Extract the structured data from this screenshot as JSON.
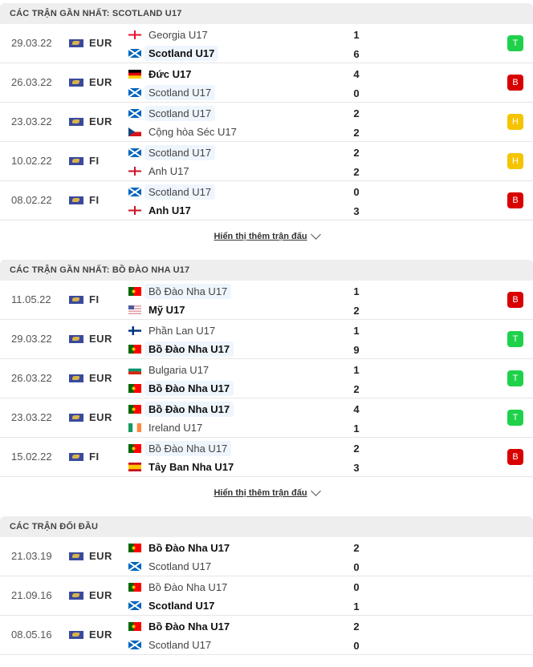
{
  "colors": {
    "win": "#1fd14a",
    "loss": "#d90000",
    "draw": "#f5c400",
    "focus_bg": "#eef5fd"
  },
  "show_more_label": "Hiển thị thêm trận đấu",
  "sections": [
    {
      "title": "CÁC TRẬN GẦN NHẤT: SCOTLAND U17",
      "show_more": true,
      "matches": [
        {
          "date": "29.03.22",
          "league": "EUR",
          "home": {
            "name": "Georgia U17",
            "flag": "georgia",
            "score": "1"
          },
          "away": {
            "name": "Scotland U17",
            "flag": "scotland",
            "score": "6",
            "focus": true,
            "bold": true
          },
          "result": "T"
        },
        {
          "date": "26.03.22",
          "league": "EUR",
          "home": {
            "name": "Đức U17",
            "flag": "germany",
            "score": "4",
            "bold": true
          },
          "away": {
            "name": "Scotland U17",
            "flag": "scotland",
            "score": "0",
            "focus": true
          },
          "result": "B"
        },
        {
          "date": "23.03.22",
          "league": "EUR",
          "home": {
            "name": "Scotland U17",
            "flag": "scotland",
            "score": "2",
            "focus": true
          },
          "away": {
            "name": "Cộng hòa Séc U17",
            "flag": "czech",
            "score": "2"
          },
          "result": "H"
        },
        {
          "date": "10.02.22",
          "league": "FI",
          "home": {
            "name": "Scotland U17",
            "flag": "scotland",
            "score": "2",
            "focus": true
          },
          "away": {
            "name": "Anh U17",
            "flag": "england",
            "score": "2"
          },
          "result": "H"
        },
        {
          "date": "08.02.22",
          "league": "FI",
          "home": {
            "name": "Scotland U17",
            "flag": "scotland",
            "score": "0",
            "focus": true
          },
          "away": {
            "name": "Anh U17",
            "flag": "england",
            "score": "3",
            "bold": true
          },
          "result": "B"
        }
      ]
    },
    {
      "title": "CÁC TRẬN GẦN NHẤT: BỒ ĐÀO NHA U17",
      "show_more": true,
      "matches": [
        {
          "date": "11.05.22",
          "league": "FI",
          "home": {
            "name": "Bồ Đào Nha U17",
            "flag": "portugal",
            "score": "1",
            "focus": true
          },
          "away": {
            "name": "Mỹ U17",
            "flag": "usa",
            "score": "2",
            "bold": true
          },
          "result": "B"
        },
        {
          "date": "29.03.22",
          "league": "EUR",
          "home": {
            "name": "Phần Lan U17",
            "flag": "finland",
            "score": "1"
          },
          "away": {
            "name": "Bồ Đào Nha U17",
            "flag": "portugal",
            "score": "9",
            "focus": true,
            "bold": true
          },
          "result": "T"
        },
        {
          "date": "26.03.22",
          "league": "EUR",
          "home": {
            "name": "Bulgaria U17",
            "flag": "bulgaria",
            "score": "1"
          },
          "away": {
            "name": "Bồ Đào Nha U17",
            "flag": "portugal",
            "score": "2",
            "focus": true,
            "bold": true
          },
          "result": "T"
        },
        {
          "date": "23.03.22",
          "league": "EUR",
          "home": {
            "name": "Bồ Đào Nha U17",
            "flag": "portugal",
            "score": "4",
            "focus": true,
            "bold": true
          },
          "away": {
            "name": "Ireland U17",
            "flag": "ireland",
            "score": "1"
          },
          "result": "T"
        },
        {
          "date": "15.02.22",
          "league": "FI",
          "home": {
            "name": "Bồ Đào Nha U17",
            "flag": "portugal",
            "score": "2",
            "focus": true
          },
          "away": {
            "name": "Tây Ban Nha U17",
            "flag": "spain",
            "score": "3",
            "bold": true
          },
          "result": "B"
        }
      ]
    },
    {
      "title": "CÁC TRẬN ĐỐI ĐẦU",
      "show_more": false,
      "matches": [
        {
          "date": "21.03.19",
          "league": "EUR",
          "home": {
            "name": "Bồ Đào Nha U17",
            "flag": "portugal",
            "score": "2",
            "bold": true
          },
          "away": {
            "name": "Scotland U17",
            "flag": "scotland",
            "score": "0"
          }
        },
        {
          "date": "21.09.16",
          "league": "EUR",
          "home": {
            "name": "Bồ Đào Nha U17",
            "flag": "portugal",
            "score": "0"
          },
          "away": {
            "name": "Scotland U17",
            "flag": "scotland",
            "score": "1",
            "bold": true
          }
        },
        {
          "date": "08.05.16",
          "league": "EUR",
          "home": {
            "name": "Bồ Đào Nha U17",
            "flag": "portugal",
            "score": "2",
            "bold": true
          },
          "away": {
            "name": "Scotland U17",
            "flag": "scotland",
            "score": "0"
          }
        }
      ]
    }
  ]
}
